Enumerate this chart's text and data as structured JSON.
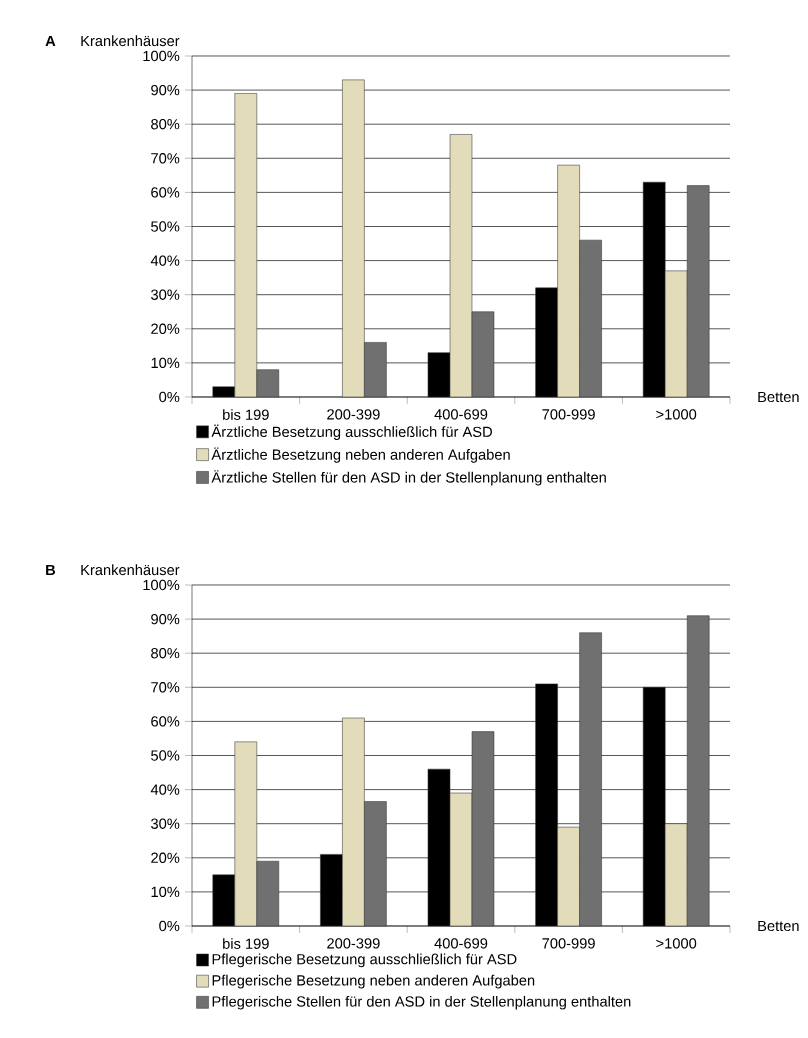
{
  "chart_data": [
    {
      "type": "bar",
      "title": "A",
      "ylabel": "Krankenhäuser",
      "xlabel": "Betten",
      "categories": [
        "bis 199",
        "200-399",
        "400-699",
        "700-999",
        ">1000"
      ],
      "series": [
        {
          "name": "Ärztliche Besetzung ausschließlich für ASD",
          "color": "#000000",
          "values": [
            3,
            null,
            13,
            32,
            63
          ]
        },
        {
          "name": "Ärztliche Besetzung neben anderen Aufgaben",
          "color": "#e2dcbb",
          "values": [
            89,
            93,
            77,
            68,
            37
          ]
        },
        {
          "name": "Ärztliche Stellen für den ASD in der Stellenplanung enthalten",
          "color": "#707070",
          "values": [
            8,
            16,
            25,
            46,
            62
          ]
        }
      ],
      "ylim": [
        0,
        100
      ],
      "yticks": [
        {
          "value": 0,
          "label": "0%"
        },
        {
          "value": 10,
          "label": "10%"
        },
        {
          "value": 20,
          "label": "20%"
        },
        {
          "value": 30,
          "label": "30%"
        },
        {
          "value": 40,
          "label": "40%"
        },
        {
          "value": 50,
          "label": "50%"
        },
        {
          "value": 60,
          "label": "60%"
        },
        {
          "value": 70,
          "label": "70%"
        },
        {
          "value": 80,
          "label": "80%"
        },
        {
          "value": 90,
          "label": "90%"
        },
        {
          "value": 100,
          "label": "100%"
        }
      ],
      "grid": "y",
      "legend": "bottom"
    },
    {
      "type": "bar",
      "title": "B",
      "ylabel": "Krankenhäuser",
      "xlabel": "Betten",
      "categories": [
        "bis 199",
        "200-399",
        "400-699",
        "700-999",
        ">1000"
      ],
      "series": [
        {
          "name": "Pflegerische Besetzung ausschließlich für ASD",
          "color": "#000000",
          "values": [
            15,
            21,
            46,
            71,
            70
          ]
        },
        {
          "name": "Pflegerische Besetzung neben anderen Aufgaben",
          "color": "#e2dcbb",
          "values": [
            54,
            61,
            39,
            29,
            30
          ]
        },
        {
          "name": "Pflegerische Stellen für den ASD in der Stellenplanung enthalten",
          "color": "#707070",
          "values": [
            19,
            36.5,
            57,
            86,
            91
          ]
        }
      ],
      "ylim": [
        0,
        100
      ],
      "yticks": [
        {
          "value": 0,
          "label": "0%"
        },
        {
          "value": 10,
          "label": "10%"
        },
        {
          "value": 20,
          "label": "20%"
        },
        {
          "value": 30,
          "label": "30%"
        },
        {
          "value": 40,
          "label": "40%"
        },
        {
          "value": 50,
          "label": "50%"
        },
        {
          "value": 60,
          "label": "60%"
        },
        {
          "value": 70,
          "label": "70%"
        },
        {
          "value": 80,
          "label": "80%"
        },
        {
          "value": 90,
          "label": "90%"
        },
        {
          "value": 100,
          "label": "100%"
        }
      ],
      "grid": "y",
      "legend": "bottom"
    }
  ]
}
